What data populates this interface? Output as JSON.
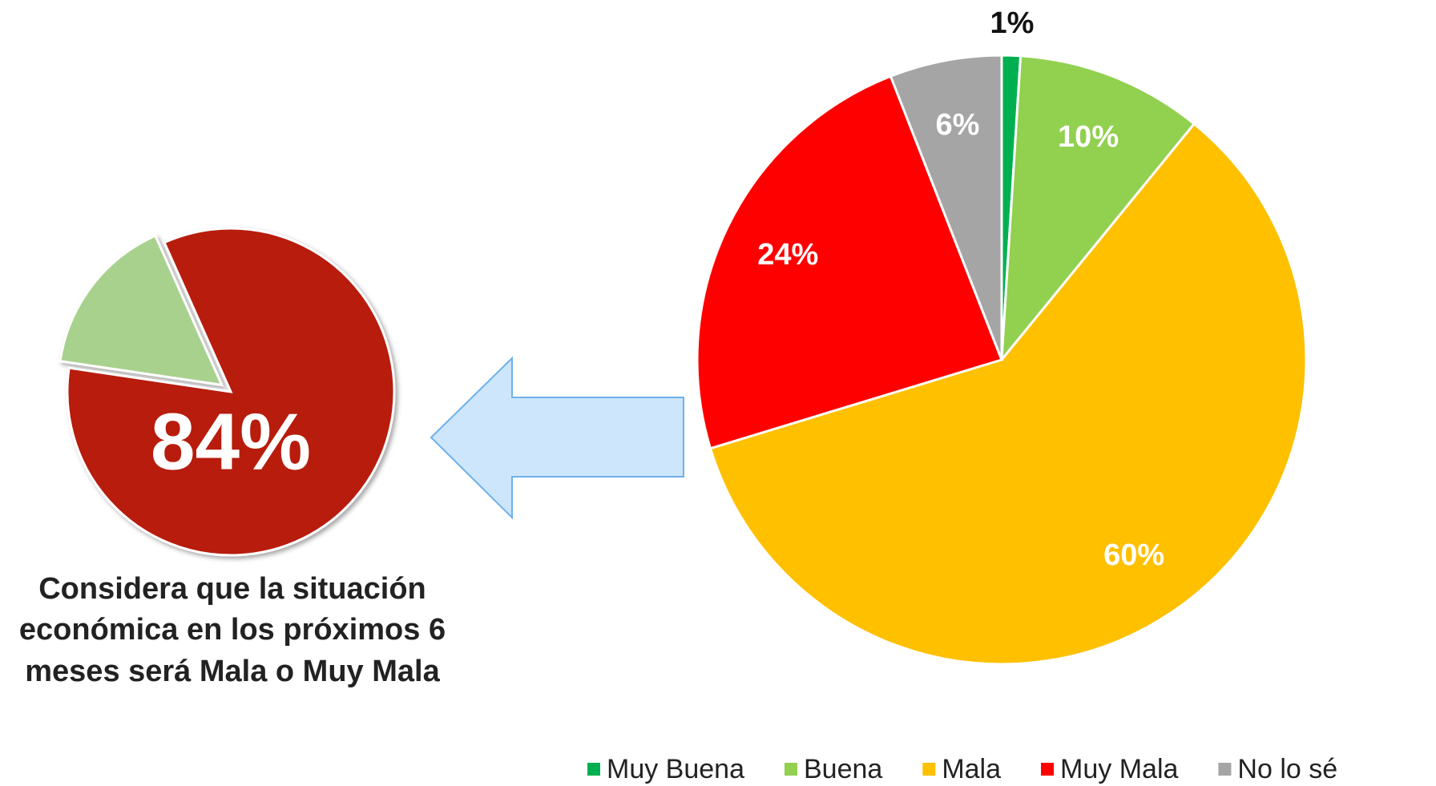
{
  "chart_data": [
    {
      "type": "pie",
      "caption": "Considera que la situación económica en los próximos 6 meses será Mala o Muy Mala",
      "categories": [
        null,
        null
      ],
      "values": [
        84,
        16
      ],
      "value_labels": [
        "84%",
        null
      ],
      "colors": [
        "#b71c0c",
        "#a9d18e"
      ],
      "start_angle": -24,
      "explode": [
        0,
        1
      ]
    },
    {
      "type": "pie",
      "categories": [
        "Muy Buena",
        "Buena",
        "Mala",
        "Muy Mala",
        "No lo sé"
      ],
      "values": [
        1,
        10,
        60,
        24,
        6
      ],
      "value_labels": [
        "1%",
        "10%",
        "60%",
        "24%",
        "6%"
      ],
      "colors": [
        "#00b050",
        "#92d050",
        "#ffc000",
        "#ff0000",
        "#a5a5a5"
      ],
      "start_angle": 0,
      "legend": "bottom"
    }
  ]
}
